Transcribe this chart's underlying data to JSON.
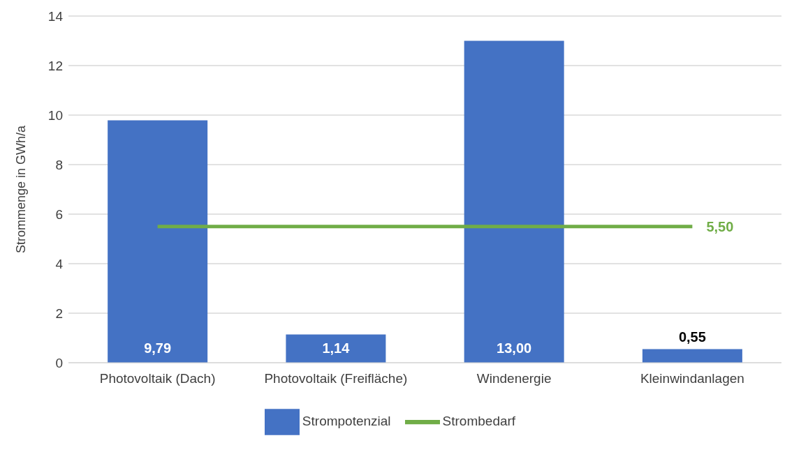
{
  "chart_data": {
    "type": "bar",
    "ylabel": "Strommenge in GWh/a",
    "categories": [
      "Photovoltaik (Dach)",
      "Photovoltaik (Freifläche)",
      "Windenergie",
      "Kleinwindanlagen"
    ],
    "series": [
      {
        "name": "Strompotenzial",
        "color": "#4472c4",
        "values": [
          9.79,
          1.14,
          13.0,
          0.55
        ],
        "value_labels": [
          "9,79",
          "1,14",
          "13,00",
          "0,55"
        ]
      },
      {
        "name": "Strombedarf",
        "type": "line",
        "color": "#70ad47",
        "values": [
          5.5,
          5.5,
          5.5,
          5.5
        ],
        "value_labels": [
          null,
          null,
          null,
          "5,50"
        ],
        "marker": "none",
        "line_style": "solid"
      }
    ],
    "ylim": [
      0,
      14
    ],
    "yticks": [
      0,
      2,
      4,
      6,
      8,
      10,
      12,
      14
    ],
    "grid": "y",
    "legend": "bottom"
  }
}
